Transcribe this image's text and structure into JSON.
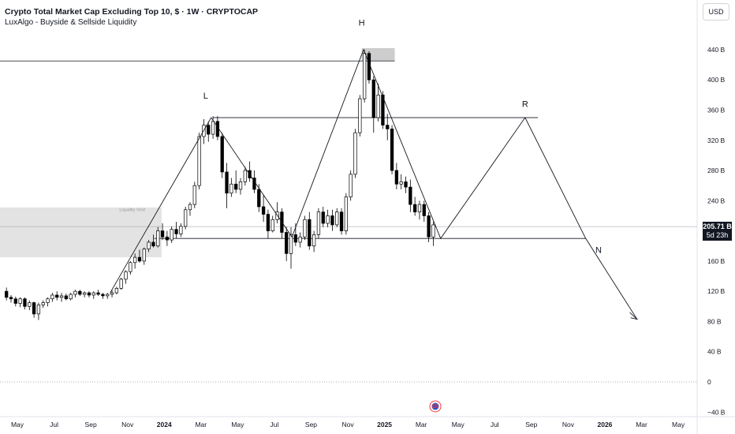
{
  "header": {
    "title": "Crypto Total Market Cap Excluding Top 10, $ · 1W · CRYPTOCAP",
    "indicator": "LuxAlgo - Buyside & Sellside Liquidity"
  },
  "currency_button": "USD",
  "price_badge": {
    "price": "205.71 B",
    "countdown": "5d 23h"
  },
  "colors": {
    "up": "#ffffff",
    "down": "#000000",
    "zone": "#dedede",
    "badge": "#131722"
  },
  "chart_data": {
    "type": "candlestick",
    "title": "Crypto Total Market Cap Excluding Top 10, $ · 1W · CRYPTOCAP",
    "y_unit": "B",
    "y_ticks": [
      -40,
      0,
      40,
      80,
      120,
      160,
      200,
      240,
      280,
      320,
      360,
      400,
      440
    ],
    "y_tick_labels": [
      "−40 B",
      "0",
      "40 B",
      "80 B",
      "120 B",
      "160 B",
      "",
      "240 B",
      "280 B",
      "320 B",
      "360 B",
      "400 B",
      "440 B"
    ],
    "x_ticks": [
      {
        "label": "May",
        "t": 0
      },
      {
        "label": "Jul",
        "t": 2
      },
      {
        "label": "Sep",
        "t": 4
      },
      {
        "label": "Nov",
        "t": 6
      },
      {
        "label": "2024",
        "t": 8,
        "bold": true
      },
      {
        "label": "Mar",
        "t": 10
      },
      {
        "label": "May",
        "t": 12
      },
      {
        "label": "Jul",
        "t": 14
      },
      {
        "label": "Sep",
        "t": 16
      },
      {
        "label": "Nov",
        "t": 18
      },
      {
        "label": "2025",
        "t": 20,
        "bold": true
      },
      {
        "label": "Mar",
        "t": 22
      },
      {
        "label": "May",
        "t": 24
      },
      {
        "label": "Jul",
        "t": 26
      },
      {
        "label": "Sep",
        "t": 28
      },
      {
        "label": "Nov",
        "t": 30
      },
      {
        "label": "2026",
        "t": 32,
        "bold": true
      },
      {
        "label": "Mar",
        "t": 34
      },
      {
        "label": "May",
        "t": 36
      }
    ],
    "last_price": 205.71,
    "candles": [
      [
        -0.25,
        120,
        125,
        108,
        112
      ],
      [
        0.0,
        112,
        115,
        105,
        110
      ],
      [
        0.25,
        110,
        113,
        100,
        104
      ],
      [
        0.5,
        104,
        112,
        99,
        110
      ],
      [
        0.75,
        110,
        112,
        96,
        100
      ],
      [
        1.0,
        100,
        108,
        95,
        105
      ],
      [
        1.25,
        105,
        106,
        85,
        90
      ],
      [
        1.5,
        90,
        105,
        82,
        102
      ],
      [
        1.75,
        102,
        108,
        98,
        105
      ],
      [
        2.0,
        105,
        112,
        100,
        110
      ],
      [
        2.25,
        110,
        118,
        106,
        115
      ],
      [
        2.5,
        115,
        120,
        108,
        112
      ],
      [
        2.75,
        112,
        118,
        106,
        114
      ],
      [
        3.0,
        114,
        117,
        108,
        110
      ],
      [
        3.25,
        110,
        118,
        108,
        116
      ],
      [
        3.5,
        116,
        122,
        112,
        120
      ],
      [
        3.75,
        120,
        122,
        114,
        116
      ],
      [
        4.0,
        116,
        120,
        112,
        118
      ],
      [
        4.25,
        118,
        120,
        112,
        115
      ],
      [
        4.5,
        115,
        120,
        110,
        118
      ],
      [
        4.75,
        118,
        122,
        114,
        116
      ],
      [
        5.0,
        116,
        118,
        110,
        114
      ],
      [
        5.25,
        114,
        118,
        110,
        116
      ],
      [
        5.5,
        116,
        122,
        112,
        118
      ],
      [
        5.75,
        118,
        126,
        116,
        124
      ],
      [
        6.0,
        124,
        138,
        122,
        136
      ],
      [
        6.25,
        136,
        148,
        130,
        146
      ],
      [
        6.5,
        146,
        160,
        142,
        158
      ],
      [
        6.75,
        158,
        170,
        150,
        165
      ],
      [
        7.0,
        165,
        175,
        158,
        160
      ],
      [
        7.25,
        160,
        178,
        155,
        176
      ],
      [
        7.5,
        176,
        188,
        172,
        185
      ],
      [
        7.75,
        185,
        195,
        178,
        180
      ],
      [
        8.0,
        180,
        205,
        178,
        200
      ],
      [
        8.25,
        200,
        210,
        188,
        192
      ],
      [
        8.5,
        192,
        200,
        180,
        188
      ],
      [
        8.75,
        188,
        206,
        184,
        202
      ],
      [
        9.0,
        202,
        212,
        190,
        196
      ],
      [
        9.25,
        196,
        210,
        192,
        206
      ],
      [
        9.5,
        206,
        232,
        202,
        228
      ],
      [
        9.75,
        228,
        238,
        220,
        235
      ],
      [
        10.0,
        235,
        265,
        230,
        260
      ],
      [
        10.25,
        260,
        330,
        255,
        325
      ],
      [
        10.5,
        325,
        348,
        315,
        340
      ],
      [
        10.75,
        340,
        345,
        318,
        328
      ],
      [
        11.0,
        328,
        352,
        322,
        345
      ],
      [
        11.25,
        345,
        352,
        320,
        325
      ],
      [
        11.5,
        325,
        330,
        270,
        278
      ],
      [
        11.75,
        278,
        290,
        230,
        250
      ],
      [
        12.0,
        250,
        270,
        245,
        262
      ],
      [
        12.25,
        262,
        280,
        250,
        255
      ],
      [
        12.5,
        255,
        270,
        248,
        265
      ],
      [
        12.75,
        265,
        285,
        260,
        280
      ],
      [
        13.0,
        280,
        292,
        265,
        270
      ],
      [
        13.25,
        270,
        280,
        250,
        255
      ],
      [
        13.5,
        255,
        262,
        225,
        232
      ],
      [
        13.75,
        232,
        248,
        212,
        222
      ],
      [
        14.0,
        222,
        228,
        190,
        200
      ],
      [
        14.25,
        200,
        220,
        198,
        215
      ],
      [
        14.5,
        215,
        238,
        210,
        225
      ],
      [
        14.75,
        225,
        230,
        190,
        198
      ],
      [
        15.0,
        198,
        205,
        160,
        170
      ],
      [
        15.25,
        170,
        205,
        150,
        195
      ],
      [
        15.5,
        195,
        210,
        180,
        185
      ],
      [
        15.75,
        185,
        198,
        178,
        192
      ],
      [
        16.0,
        192,
        220,
        188,
        215
      ],
      [
        16.25,
        215,
        225,
        175,
        180
      ],
      [
        16.5,
        180,
        200,
        172,
        195
      ],
      [
        16.75,
        195,
        230,
        190,
        225
      ],
      [
        17.0,
        225,
        232,
        205,
        210
      ],
      [
        17.25,
        210,
        228,
        205,
        220
      ],
      [
        17.5,
        220,
        228,
        200,
        208
      ],
      [
        17.75,
        208,
        230,
        205,
        225
      ],
      [
        18.0,
        225,
        230,
        195,
        200
      ],
      [
        18.25,
        200,
        250,
        195,
        245
      ],
      [
        18.5,
        245,
        280,
        240,
        275
      ],
      [
        18.75,
        275,
        335,
        270,
        330
      ],
      [
        19.0,
        330,
        380,
        325,
        375
      ],
      [
        19.25,
        375,
        440,
        370,
        435
      ],
      [
        19.5,
        435,
        438,
        395,
        400
      ],
      [
        19.75,
        400,
        405,
        330,
        350
      ],
      [
        20.0,
        350,
        395,
        345,
        380
      ],
      [
        20.25,
        380,
        385,
        335,
        340
      ],
      [
        20.5,
        340,
        355,
        320,
        335
      ],
      [
        20.75,
        335,
        340,
        275,
        280
      ],
      [
        21.0,
        280,
        290,
        255,
        262
      ],
      [
        21.25,
        262,
        275,
        255,
        265
      ],
      [
        21.5,
        265,
        272,
        250,
        258
      ],
      [
        21.75,
        258,
        268,
        225,
        235
      ],
      [
        22.0,
        235,
        245,
        220,
        225
      ],
      [
        22.25,
        225,
        240,
        215,
        235
      ],
      [
        22.5,
        235,
        240,
        212,
        220
      ],
      [
        22.75,
        220,
        225,
        185,
        192
      ],
      [
        23.0,
        192,
        212,
        180,
        208
      ]
    ],
    "annotations": [
      {
        "label": "L",
        "t": 10.6,
        "v": 375
      },
      {
        "label": "H",
        "t": 19.1,
        "v": 472
      },
      {
        "label": "R",
        "t": 28.0,
        "v": 364
      },
      {
        "label": "N",
        "t": 32.0,
        "v": 171
      }
    ],
    "zone_label": "Liquidity Void"
  }
}
